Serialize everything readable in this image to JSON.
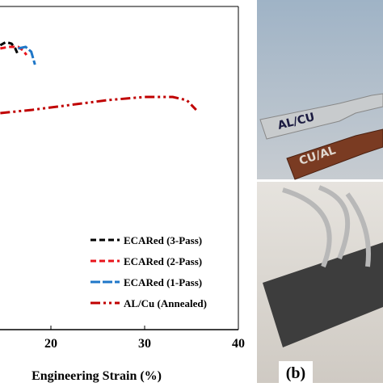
{
  "chart_data": {
    "type": "line",
    "xlabel": "Engineering Strain (%)",
    "xlim": [
      0,
      40
    ],
    "xticks": [
      20,
      30,
      40
    ],
    "ylim": [
      0,
      100
    ],
    "legend": "lower right",
    "series": [
      {
        "name": "ECARed (3-Pass)",
        "color": "#000000",
        "dash": "7 4",
        "x": [
          14.6,
          15.2,
          15.8,
          16.2,
          16.5
        ],
        "values": [
          88,
          89,
          88.5,
          87,
          85
        ]
      },
      {
        "name": "ECARed (2-Pass)",
        "color": "#e8141b",
        "dash": "7 4",
        "x": [
          14.6,
          15.5,
          16.5,
          17.0,
          17.4
        ],
        "values": [
          87,
          87.5,
          87.5,
          86.5,
          85
        ]
      },
      {
        "name": "ECARed (1-Pass)",
        "color": "#1f77c8",
        "dash": "12 3",
        "x": [
          16.5,
          17.3,
          17.9,
          18.2,
          18.3
        ],
        "values": [
          87,
          87.5,
          86,
          83,
          82
        ]
      },
      {
        "name": "AL/Cu (Annealed)",
        "color": "#c00000",
        "dash": "12 4 3 4 3 4",
        "x": [
          14.6,
          18,
          22,
          26,
          30,
          33,
          34.5,
          35.5
        ],
        "values": [
          67,
          68,
          69.5,
          71,
          72,
          72,
          71,
          68
        ]
      }
    ]
  },
  "photos": {
    "label": "(b)",
    "top_strip": "AL/CU",
    "bottom_strip": "CU/AL"
  }
}
